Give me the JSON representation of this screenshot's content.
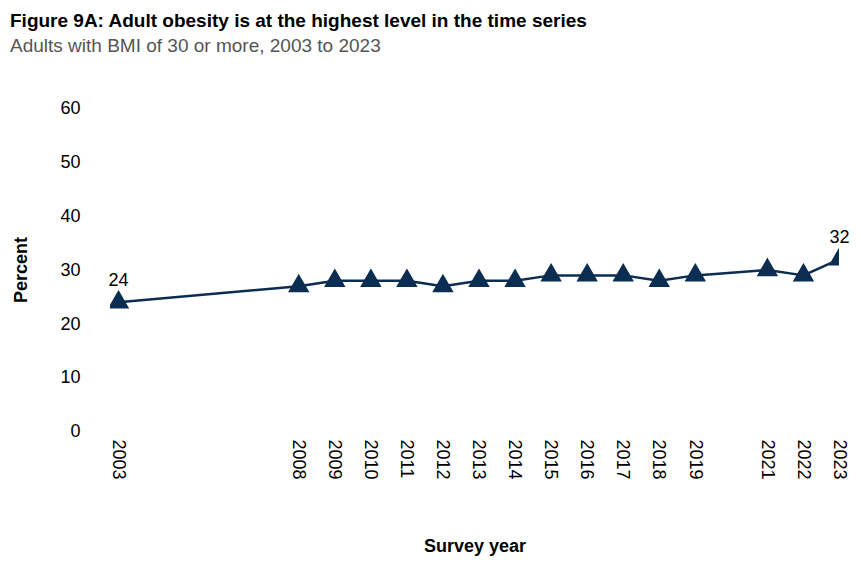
{
  "chart_data": {
    "type": "line",
    "title": "Figure 9A: Adult obesity is at the highest level in the time series",
    "subtitle": "Adults with BMI of 30 or more, 2003 to 2023",
    "x_label": "Survey year",
    "y_label": "Percent",
    "x": [
      2003,
      2008,
      2009,
      2010,
      2011,
      2012,
      2013,
      2014,
      2015,
      2016,
      2017,
      2018,
      2019,
      2021,
      2022,
      2023
    ],
    "series": [
      {
        "name": "Adults with BMI of 30 or more",
        "color": "#0b2d52",
        "marker": "triangle",
        "values": [
          24,
          27,
          28,
          28,
          28,
          27,
          28,
          28,
          29,
          29,
          29,
          28,
          29,
          30,
          29,
          32
        ]
      }
    ],
    "annotations": [
      {
        "x": 2003,
        "text": "24"
      },
      {
        "x": 2023,
        "text": "32"
      }
    ],
    "xlim": [
      2003,
      2023
    ],
    "xticks": [
      2003,
      2008,
      2009,
      2010,
      2011,
      2012,
      2013,
      2014,
      2015,
      2016,
      2017,
      2018,
      2019,
      2021,
      2022,
      2023
    ],
    "ylim": [
      0,
      60
    ],
    "yticks": [
      0,
      10,
      20,
      30,
      40,
      50,
      60
    ],
    "grid": false
  }
}
